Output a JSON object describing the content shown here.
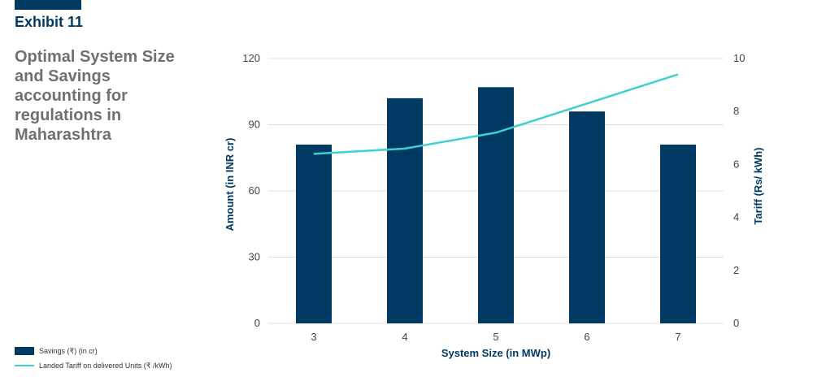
{
  "header": {
    "exhibit": "Exhibit 11",
    "title": "Optimal System Size and Savings accounting for regulations in Maharashtra"
  },
  "legend": {
    "bar_label": "Savings  (₹) (in cr)",
    "line_label": "Landed Tariff on delivered Units (₹ /kWh)"
  },
  "chart_data": {
    "type": "bar",
    "title": "Optimal System Size and Savings accounting for regulations in Maharashtra",
    "categories": [
      "3",
      "4",
      "5",
      "6",
      "7"
    ],
    "series": [
      {
        "name": "Savings  (₹) (in cr)",
        "type": "bar",
        "axis": "left",
        "values": [
          81,
          102,
          107,
          96,
          81
        ]
      },
      {
        "name": "Landed Tariff on delivered Units (₹ /kWh)",
        "type": "line",
        "axis": "right",
        "values": [
          6.4,
          6.6,
          7.2,
          8.3,
          9.4
        ]
      }
    ],
    "xlabel": "System Size (in MWp)",
    "ylabel": "Amount (in INR cr)",
    "y2label": "Tariff (Rs/ kWh)",
    "ylim": [
      0,
      120
    ],
    "y2lim": [
      0,
      10
    ],
    "yticks": [
      "0",
      "30",
      "60",
      "90",
      "120"
    ],
    "y2ticks": [
      "0",
      "2",
      "4",
      "6",
      "8",
      "10"
    ],
    "grid": true,
    "colors": {
      "bar": "#003a63",
      "line": "#3fd0cf",
      "grid": "#e0e0e0"
    }
  }
}
